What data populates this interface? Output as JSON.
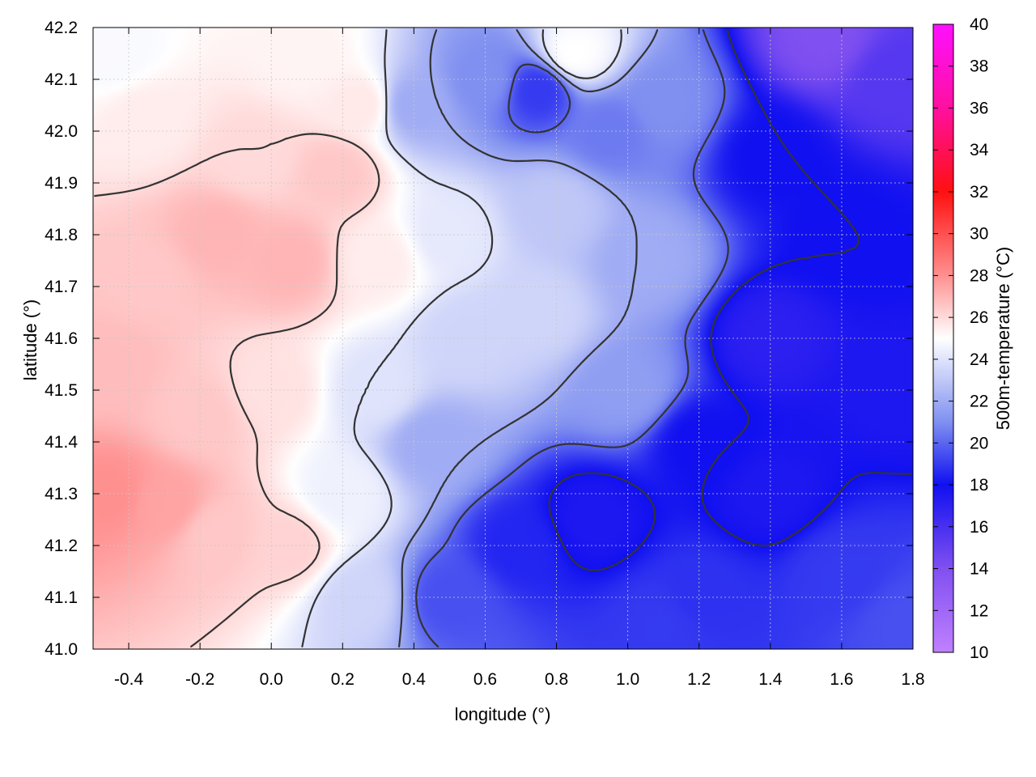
{
  "chart_data": {
    "type": "heatmap",
    "xlabel": "longitude (°)",
    "ylabel": "latitude (°)",
    "colorbar_label": "500m-temperature (°C)",
    "xlim": [
      -0.5,
      1.8
    ],
    "ylim": [
      41.0,
      42.2
    ],
    "clim": [
      10,
      40
    ],
    "x_ticks": [
      -0.4,
      -0.2,
      0.0,
      0.2,
      0.4,
      0.6,
      0.8,
      1.0,
      1.2,
      1.4,
      1.6,
      1.8
    ],
    "x_tick_labels": [
      "-0.4",
      "-0.2",
      "0.0",
      "0.2",
      "0.4",
      "0.6",
      "0.8",
      "1.0",
      "1.2",
      "1.4",
      "1.6",
      "1.8"
    ],
    "y_ticks": [
      41.0,
      41.1,
      41.2,
      41.3,
      41.4,
      41.5,
      41.6,
      41.7,
      41.8,
      41.9,
      42.0,
      42.1,
      42.2
    ],
    "y_tick_labels": [
      "41.0",
      "41.1",
      "41.2",
      "41.3",
      "41.4",
      "41.5",
      "41.6",
      "41.7",
      "41.8",
      "41.9",
      "42.0",
      "42.1",
      "42.2"
    ],
    "colorbar_ticks": [
      10,
      12,
      14,
      16,
      18,
      20,
      22,
      24,
      26,
      28,
      30,
      32,
      34,
      36,
      38,
      40
    ],
    "colorbar_tick_labels": [
      "10",
      "12",
      "14",
      "16",
      "18",
      "20",
      "22",
      "24",
      "26",
      "28",
      "30",
      "32",
      "34",
      "36",
      "38",
      "40"
    ],
    "colormap": [
      {
        "value": 10,
        "color": "#c080ff"
      },
      {
        "value": 14,
        "color": "#8050f0"
      },
      {
        "value": 18,
        "color": "#1010f0"
      },
      {
        "value": 21,
        "color": "#8090f0"
      },
      {
        "value": 25,
        "color": "#ffffff"
      },
      {
        "value": 28,
        "color": "#ff9090"
      },
      {
        "value": 32,
        "color": "#ff1010"
      },
      {
        "value": 36,
        "color": "#ff10a0"
      },
      {
        "value": 40,
        "color": "#ff10ff"
      }
    ],
    "grid": true,
    "grid_color": "#c8c8c8",
    "contour_color": "#333333",
    "field_nodes": [
      {
        "lon": -0.45,
        "lat": 41.3,
        "temp": 28.0
      },
      {
        "lon": -0.3,
        "lat": 41.28,
        "temp": 27.5
      },
      {
        "lon": -0.15,
        "lat": 41.22,
        "temp": 26.5
      },
      {
        "lon": 0.05,
        "lat": 41.2,
        "temp": 26.2
      },
      {
        "lon": -0.2,
        "lat": 41.45,
        "temp": 26.5
      },
      {
        "lon": 0.0,
        "lat": 41.5,
        "temp": 25.8
      },
      {
        "lon": -0.45,
        "lat": 41.55,
        "temp": 26.8
      },
      {
        "lon": -0.35,
        "lat": 41.72,
        "temp": 26.5
      },
      {
        "lon": -0.15,
        "lat": 41.8,
        "temp": 27.0
      },
      {
        "lon": 0.05,
        "lat": 41.75,
        "temp": 27.0
      },
      {
        "lon": 0.18,
        "lat": 41.92,
        "temp": 26.5
      },
      {
        "lon": -0.05,
        "lat": 41.95,
        "temp": 26.0
      },
      {
        "lon": -0.35,
        "lat": 42.02,
        "temp": 25.5
      },
      {
        "lon": -0.45,
        "lat": 42.15,
        "temp": 24.8
      },
      {
        "lon": 0.1,
        "lat": 42.15,
        "temp": 25.3
      },
      {
        "lon": 0.25,
        "lat": 42.05,
        "temp": 25.6
      },
      {
        "lon": 0.3,
        "lat": 41.75,
        "temp": 25.5
      },
      {
        "lon": 0.3,
        "lat": 41.5,
        "temp": 24.0
      },
      {
        "lon": 0.2,
        "lat": 41.3,
        "temp": 24.5
      },
      {
        "lon": 0.25,
        "lat": 41.1,
        "temp": 23.5
      },
      {
        "lon": 0.5,
        "lat": 41.8,
        "temp": 24.2
      },
      {
        "lon": 0.55,
        "lat": 41.6,
        "temp": 23.5
      },
      {
        "lon": 0.45,
        "lat": 41.4,
        "temp": 22.0
      },
      {
        "lon": 0.5,
        "lat": 41.1,
        "temp": 19.5
      },
      {
        "lon": 0.75,
        "lat": 41.65,
        "temp": 23.5
      },
      {
        "lon": 0.8,
        "lat": 41.85,
        "temp": 23.0
      },
      {
        "lon": 0.6,
        "lat": 42.1,
        "temp": 21.0
      },
      {
        "lon": 0.75,
        "lat": 42.08,
        "temp": 19.0
      },
      {
        "lon": 0.85,
        "lat": 42.15,
        "temp": 25.0
      },
      {
        "lon": 0.95,
        "lat": 42.0,
        "temp": 20.5
      },
      {
        "lon": 0.4,
        "lat": 42.05,
        "temp": 22.0
      },
      {
        "lon": 0.7,
        "lat": 41.2,
        "temp": 18.5
      },
      {
        "lon": 0.9,
        "lat": 41.25,
        "temp": 17.5
      },
      {
        "lon": 1.0,
        "lat": 41.5,
        "temp": 21.5
      },
      {
        "lon": 1.05,
        "lat": 41.75,
        "temp": 22.0
      },
      {
        "lon": 1.1,
        "lat": 42.05,
        "temp": 21.0
      },
      {
        "lon": 1.2,
        "lat": 41.4,
        "temp": 18.0
      },
      {
        "lon": 1.2,
        "lat": 41.1,
        "temp": 18.8
      },
      {
        "lon": 1.4,
        "lat": 41.6,
        "temp": 17.0
      },
      {
        "lon": 1.4,
        "lat": 41.95,
        "temp": 18.0
      },
      {
        "lon": 1.4,
        "lat": 41.3,
        "temp": 17.5
      },
      {
        "lon": 1.6,
        "lat": 41.15,
        "temp": 19.0
      },
      {
        "lon": 1.6,
        "lat": 41.8,
        "temp": 18.0
      },
      {
        "lon": 1.55,
        "lat": 42.18,
        "temp": 14.0
      },
      {
        "lon": 1.75,
        "lat": 42.1,
        "temp": 15.5
      },
      {
        "lon": 1.75,
        "lat": 41.5,
        "temp": 17.5
      },
      {
        "lon": 1.78,
        "lat": 41.05,
        "temp": 19.5
      },
      {
        "lon": 1.1,
        "lat": 41.05,
        "temp": 19.0
      }
    ],
    "contour_levels": [
      18,
      20,
      22,
      24,
      26
    ]
  }
}
